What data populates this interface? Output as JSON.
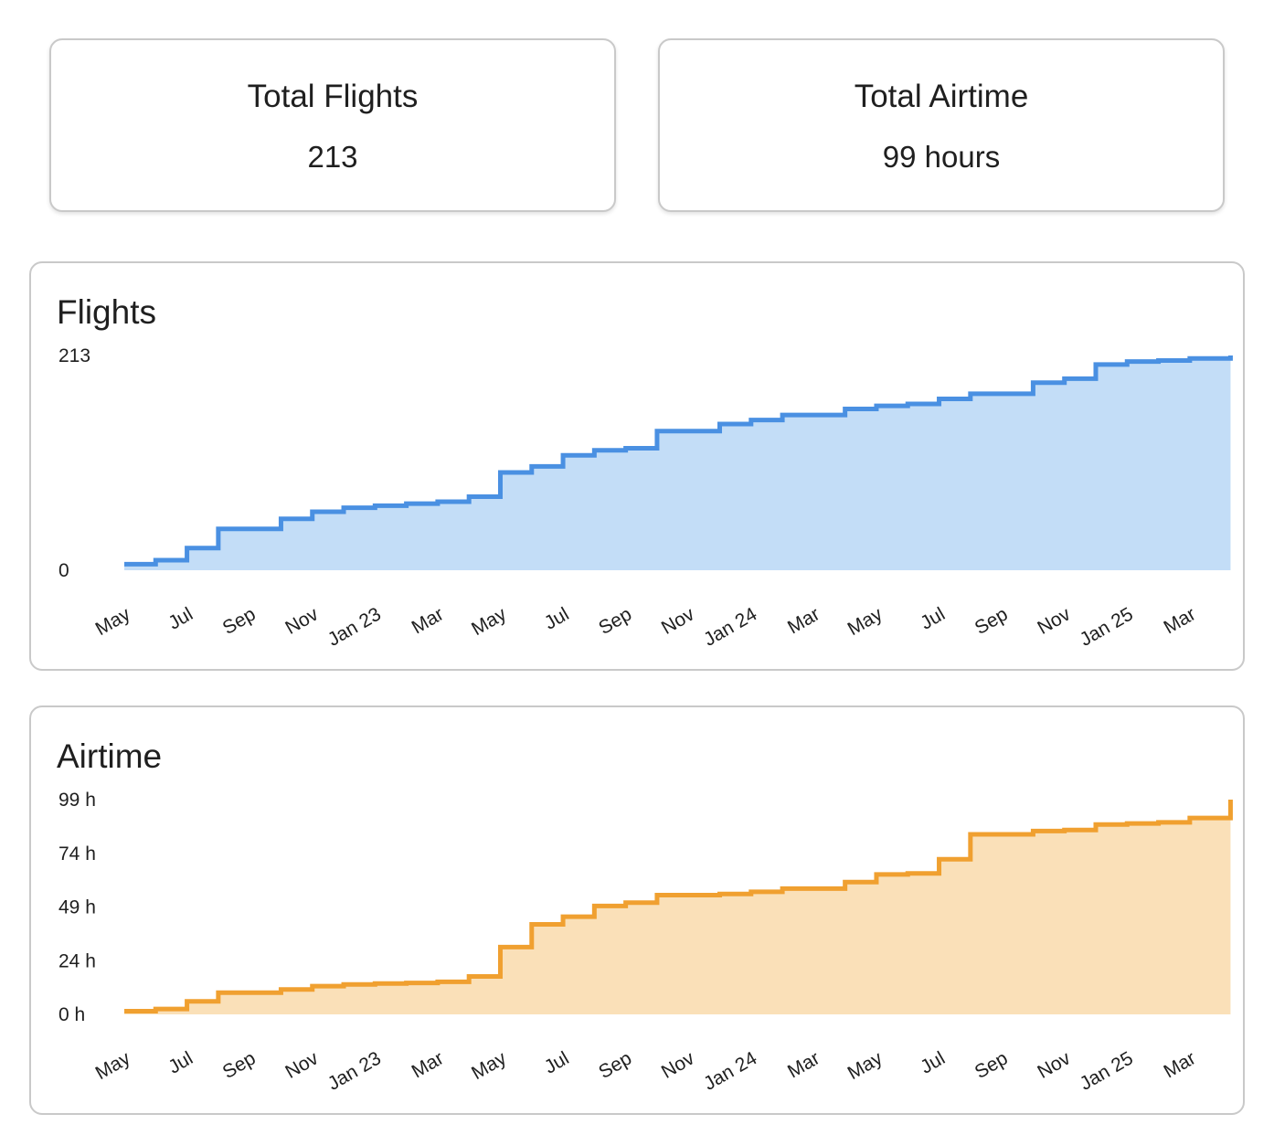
{
  "stats": [
    {
      "label": "Total Flights",
      "value": "213"
    },
    {
      "label": "Total Airtime",
      "value": "99 hours"
    }
  ],
  "chart_data": [
    {
      "type": "area",
      "step": true,
      "title": "Flights",
      "color": "#4a90e2",
      "fill": "#c3ddf7",
      "x_labels": [
        "May",
        "Jul",
        "Sep",
        "Nov",
        "Jan 23",
        "Mar",
        "May",
        "Jul",
        "Sep",
        "Nov",
        "Jan 24",
        "Mar",
        "May",
        "Jul",
        "Sep",
        "Nov",
        "Jan 25",
        "Mar"
      ],
      "y_ticks": [
        "0",
        "213"
      ],
      "ylim": [
        0,
        213
      ],
      "xlim": [
        0,
        35.3
      ],
      "points": [
        [
          0,
          6
        ],
        [
          1,
          10
        ],
        [
          2,
          22
        ],
        [
          3,
          41
        ],
        [
          5,
          51
        ],
        [
          6,
          58
        ],
        [
          7,
          62
        ],
        [
          8,
          64
        ],
        [
          9,
          66
        ],
        [
          10,
          68
        ],
        [
          11,
          73
        ],
        [
          12,
          97
        ],
        [
          13,
          103
        ],
        [
          14,
          114
        ],
        [
          15,
          119
        ],
        [
          16,
          121
        ],
        [
          17,
          138
        ],
        [
          19,
          145
        ],
        [
          20,
          149
        ],
        [
          21,
          154
        ],
        [
          23,
          160
        ],
        [
          24,
          163
        ],
        [
          25,
          165
        ],
        [
          26,
          170
        ],
        [
          27,
          175
        ],
        [
          29,
          186
        ],
        [
          30,
          190
        ],
        [
          31,
          204
        ],
        [
          32,
          207
        ],
        [
          33,
          208
        ],
        [
          34,
          210
        ],
        [
          35.3,
          213
        ]
      ]
    },
    {
      "type": "area",
      "step": true,
      "title": "Airtime",
      "color": "#f0a030",
      "fill": "#fae0b8",
      "x_labels": [
        "May",
        "Jul",
        "Sep",
        "Nov",
        "Jan 23",
        "Mar",
        "May",
        "Jul",
        "Sep",
        "Nov",
        "Jan 24",
        "Mar",
        "May",
        "Jul",
        "Sep",
        "Nov",
        "Jan 25",
        "Mar"
      ],
      "y_ticks": [
        "0 h",
        "24 h",
        "49 h",
        "74 h",
        "99 h"
      ],
      "ylim": [
        0,
        99
      ],
      "xlim": [
        0,
        35.3
      ],
      "points": [
        [
          0,
          1.5
        ],
        [
          1,
          2.5
        ],
        [
          2,
          6
        ],
        [
          3,
          10
        ],
        [
          5,
          11.5
        ],
        [
          6,
          13
        ],
        [
          7,
          13.8
        ],
        [
          8,
          14.2
        ],
        [
          9,
          14.5
        ],
        [
          10,
          15
        ],
        [
          11,
          17.5
        ],
        [
          12,
          31
        ],
        [
          13,
          41.5
        ],
        [
          14,
          45
        ],
        [
          15,
          50
        ],
        [
          16,
          51.5
        ],
        [
          17,
          55
        ],
        [
          19,
          55.5
        ],
        [
          20,
          56.5
        ],
        [
          21,
          58
        ],
        [
          23,
          61
        ],
        [
          24,
          64.5
        ],
        [
          25,
          65
        ],
        [
          26,
          71.5
        ],
        [
          27,
          83
        ],
        [
          29,
          84.5
        ],
        [
          30,
          85
        ],
        [
          31,
          87.5
        ],
        [
          32,
          88
        ],
        [
          33,
          88.5
        ],
        [
          34,
          90.5
        ],
        [
          35.3,
          99
        ]
      ]
    }
  ]
}
